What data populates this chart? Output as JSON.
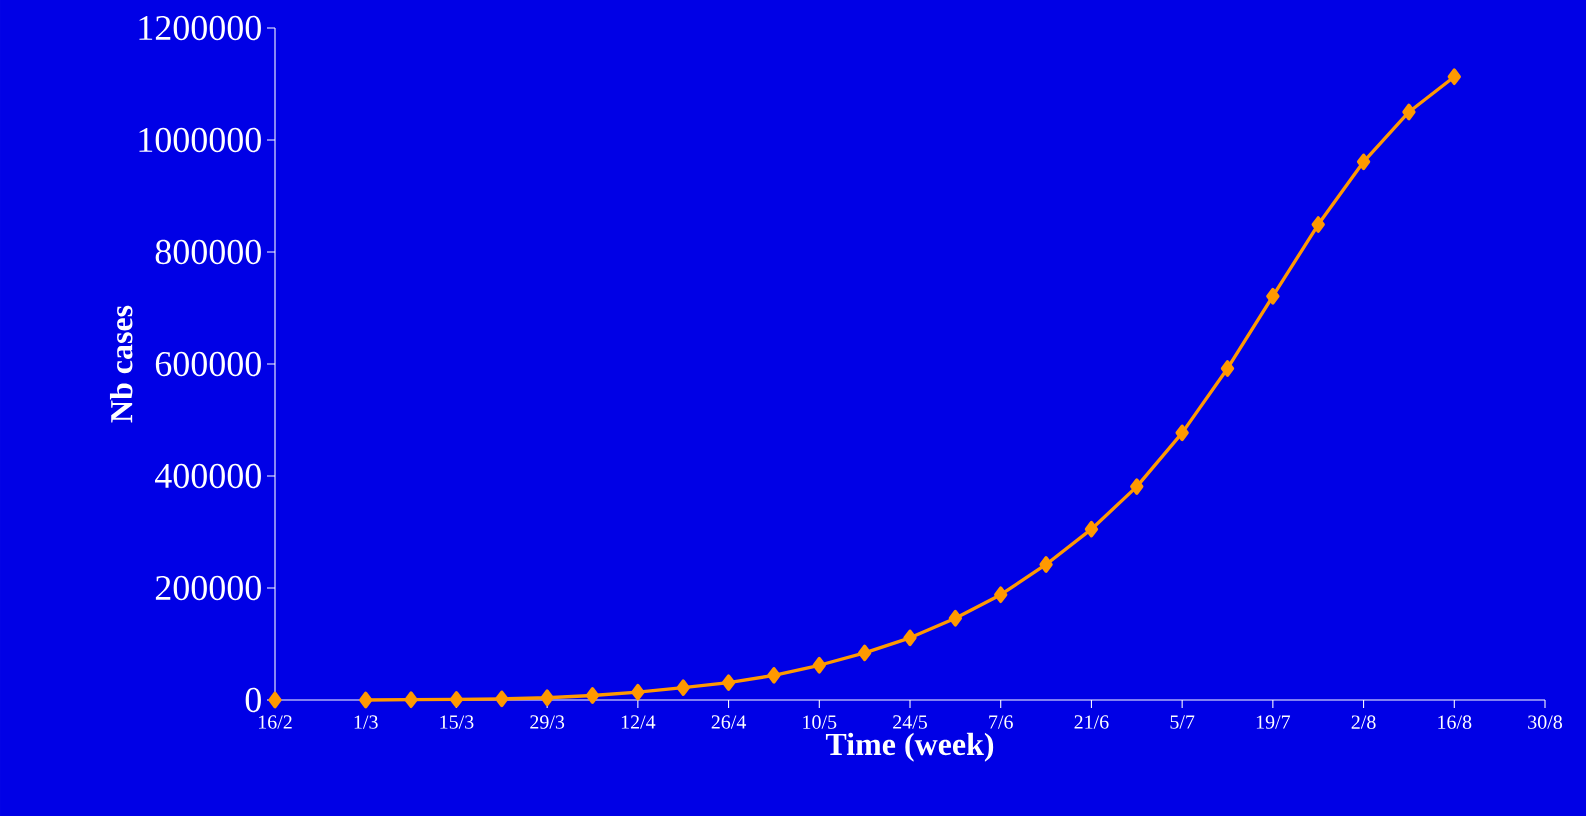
{
  "chart_data": {
    "type": "line",
    "xlabel": "Time (week)",
    "ylabel": "Nb cases",
    "categories": [
      "16/2",
      null,
      "1/3",
      null,
      "15/3",
      null,
      "29/3",
      null,
      "12/4",
      null,
      "26/4",
      null,
      "10/5",
      null,
      "24/5",
      null,
      "7/6",
      null,
      "21/6",
      null,
      "5/7",
      null,
      "19/7",
      null,
      "2/8",
      null,
      "16/8",
      null,
      "30/8"
    ],
    "series": [
      {
        "color": "#ff9900",
        "values": [
          0,
          null,
          0,
          500,
          1000,
          2000,
          4000,
          8000,
          14000,
          22000,
          31000,
          44000,
          62000,
          84000,
          111000,
          146000,
          188000,
          242000,
          305000,
          381000,
          477000,
          592000,
          721000,
          849000,
          961000,
          1050000,
          1113000,
          null,
          null
        ]
      }
    ],
    "ylim": [
      0,
      1200000
    ],
    "yticks": [
      0,
      200000,
      400000,
      600000,
      800000,
      1000000,
      1200000
    ],
    "marker": "diamond",
    "line_style": "solid"
  }
}
